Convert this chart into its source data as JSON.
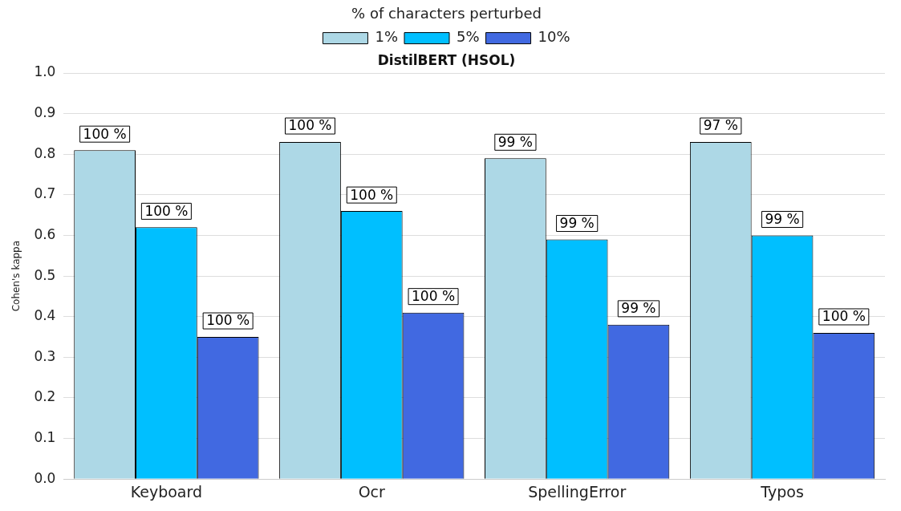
{
  "chart_data": {
    "type": "bar",
    "title": "DistilBERT (HSOL)",
    "ylabel": "Cohen's kappa",
    "legend_title": "% of characters perturbed",
    "categories": [
      "Keyboard",
      "Ocr",
      "SpellingError",
      "Typos"
    ],
    "series": [
      {
        "name": "1%",
        "color": "#add8e6",
        "values": [
          0.81,
          0.83,
          0.79,
          0.83
        ]
      },
      {
        "name": "5%",
        "color": "#00bfff",
        "values": [
          0.62,
          0.66,
          0.59,
          0.6
        ]
      },
      {
        "name": "10%",
        "color": "#4169e1",
        "values": [
          0.35,
          0.41,
          0.38,
          0.36
        ]
      }
    ],
    "annotations": [
      "100 %",
      "100 %",
      "100 %",
      "100 %",
      "100 %",
      "100 %",
      "99 %",
      "99 %",
      "99 %",
      "97 %",
      "99 %",
      "100 %"
    ],
    "ylim": [
      0,
      1.0
    ],
    "yticks": [
      {
        "value": 0,
        "label": "0.0"
      },
      0.1,
      0.2,
      0.3,
      0.4,
      0.5,
      0.6,
      0.7,
      0.8,
      0.9,
      {
        "value": 1,
        "label": "1.0"
      }
    ],
    "grid": "y",
    "legend": "top"
  }
}
